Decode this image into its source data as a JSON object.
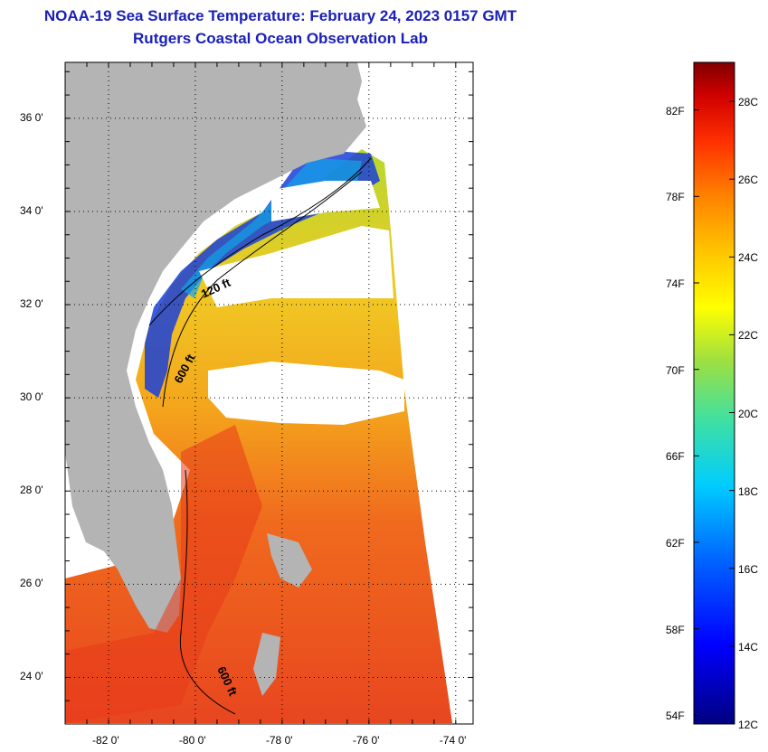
{
  "header": {
    "title": "NOAA-19 Sea Surface Temperature:  February 24, 2023 0157 GMT",
    "subtitle": "Rutgers Coastal Ocean Observation Lab"
  },
  "map": {
    "lat_labels": [
      "36 0'",
      "34 0'",
      "32 0'",
      "30 0'",
      "28 0'",
      "26 0'",
      "24 0'"
    ],
    "lon_labels": [
      "-82 0'",
      "-80 0'",
      "-78 0'",
      "-76 0'",
      "-74 0'"
    ],
    "lat_range": [
      23.0,
      37.2
    ],
    "lon_range": [
      -83.0,
      -73.6
    ],
    "contours": [
      "120 ft",
      "600 ft",
      "600 ft"
    ],
    "colors": {
      "land": "#b4b4b4",
      "cloud": "#ffffff",
      "warm": "#e8461f",
      "cold": "#1a2fc8"
    }
  },
  "colorbar": {
    "fahrenheit_labels": [
      "82F",
      "78F",
      "74F",
      "70F",
      "66F",
      "62F",
      "58F",
      "54F"
    ],
    "celsius_labels": [
      "28C",
      "26C",
      "24C",
      "22C",
      "20C",
      "18C",
      "16C",
      "14C",
      "12C"
    ],
    "range_c": [
      12,
      29
    ]
  }
}
